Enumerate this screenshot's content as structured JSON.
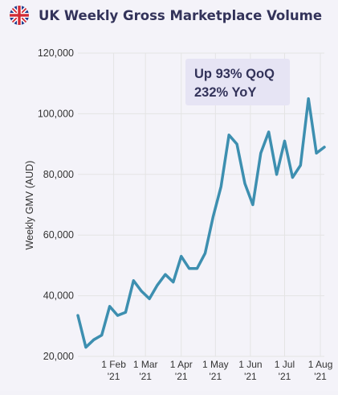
{
  "header": {
    "title": "UK Weekly Gross Marketplace Volume",
    "flag_icon": "uk-flag-icon"
  },
  "colors": {
    "line": "#3d8fb0",
    "title": "#33335a",
    "annotation_bg": "#e6e4f4",
    "annotation_text": "#33335a",
    "grid": "#e4e4e4",
    "axis_text": "#333333"
  },
  "chart_data": {
    "type": "line",
    "title": "UK Weekly Gross Marketplace Volume",
    "xlabel": "",
    "ylabel": "Weekly GMV (AUD)",
    "ylim": [
      20000,
      120000
    ],
    "yticks": [
      20000,
      40000,
      60000,
      80000,
      100000,
      120000
    ],
    "ytick_labels": [
      "20,000",
      "40,000",
      "60,000",
      "80,000",
      "100,000",
      "120,000"
    ],
    "xticks": [
      {
        "line1": "1 Feb",
        "line2": "'21",
        "week_index": 4.5
      },
      {
        "line1": "1 Mar",
        "line2": "'21",
        "week_index": 8.5
      },
      {
        "line1": "1 Apr",
        "line2": "'21",
        "week_index": 13
      },
      {
        "line1": "1 May",
        "line2": "'21",
        "week_index": 17.3
      },
      {
        "line1": "1 Jun",
        "line2": "'21",
        "week_index": 21.7
      },
      {
        "line1": "1 Jul",
        "line2": "'21",
        "week_index": 26
      },
      {
        "line1": "1 Aug",
        "line2": "'21",
        "week_index": 30.5
      }
    ],
    "grid": true,
    "series": [
      {
        "values": [
          33500,
          23000,
          25500,
          27000,
          36500,
          33500,
          34500,
          45000,
          41500,
          39000,
          43500,
          47000,
          44500,
          53000,
          49000,
          49000,
          54000,
          66000,
          76000,
          93000,
          90000,
          77000,
          70000,
          87000,
          94000,
          80000,
          91000,
          79000,
          83000,
          105000,
          87000,
          89000
        ]
      }
    ],
    "annotation": {
      "line1": "Up 93% QoQ",
      "line2": "232% YoY"
    }
  }
}
